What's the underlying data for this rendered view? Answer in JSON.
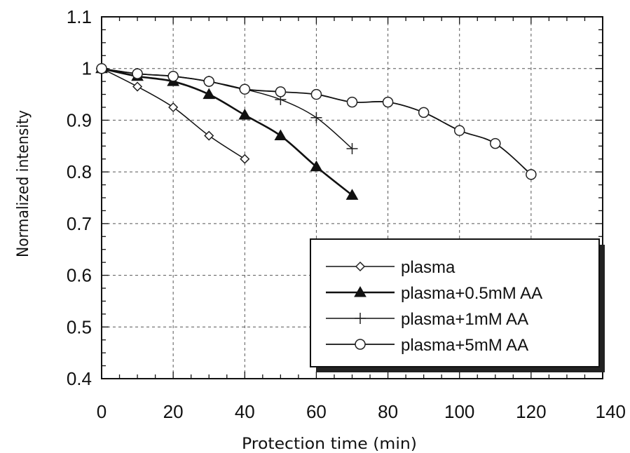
{
  "chart_data": {
    "type": "line",
    "xlabel": "Protection time (min)",
    "ylabel": "Normalized intensity",
    "xlim": [
      0,
      140
    ],
    "ylim": [
      0.4,
      1.1
    ],
    "x_ticks": [
      "0",
      "20",
      "40",
      "60",
      "80",
      "100",
      "120",
      "140"
    ],
    "y_ticks": [
      "0.4",
      "0.5",
      "0.6",
      "0.7",
      "0.8",
      "0.9",
      "1",
      "1.1"
    ],
    "grid": true,
    "legend_position": "bottom-right",
    "series": [
      {
        "name": "plasma",
        "marker": "open-diamond",
        "x": [
          0,
          10,
          20,
          30,
          40
        ],
        "y": [
          1.0,
          0.965,
          0.925,
          0.87,
          0.825
        ]
      },
      {
        "name": "plasma+0.5mM AA",
        "marker": "filled-triangle",
        "x": [
          0,
          10,
          20,
          30,
          40,
          50,
          60,
          70
        ],
        "y": [
          1.0,
          0.985,
          0.975,
          0.95,
          0.91,
          0.87,
          0.81,
          0.755
        ]
      },
      {
        "name": "plasma+1mM AA",
        "marker": "plus",
        "x": [
          0,
          10,
          20,
          30,
          40,
          50,
          60,
          70
        ],
        "y": [
          1.0,
          0.99,
          0.985,
          0.975,
          0.96,
          0.94,
          0.905,
          0.845
        ]
      },
      {
        "name": "plasma+5mM AA",
        "marker": "open-circle",
        "x": [
          0,
          10,
          20,
          30,
          40,
          50,
          60,
          70,
          80,
          90,
          100,
          110,
          120
        ],
        "y": [
          1.0,
          0.99,
          0.985,
          0.975,
          0.96,
          0.955,
          0.95,
          0.935,
          0.935,
          0.915,
          0.88,
          0.855,
          0.795
        ]
      }
    ]
  }
}
